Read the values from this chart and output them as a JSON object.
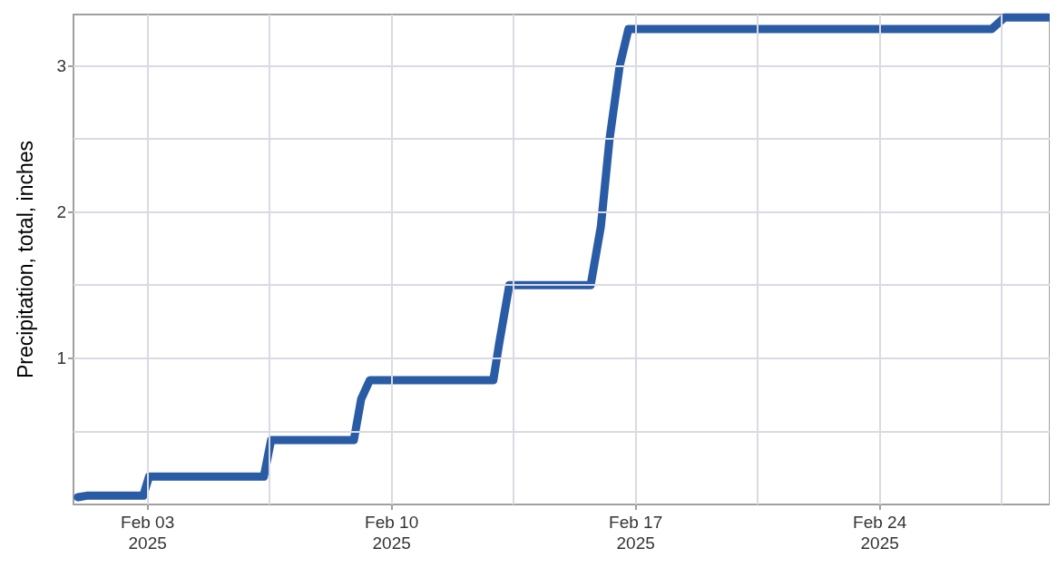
{
  "chart_data": {
    "type": "line",
    "ylabel": "Precipitation, total, inches",
    "x": [
      "2025-02-01T00:00",
      "2025-02-01T06:00",
      "2025-02-02T21:00",
      "2025-02-03T01:00",
      "2025-02-06T08:00",
      "2025-02-06T13:00",
      "2025-02-08T22:00",
      "2025-02-09T03:00",
      "2025-02-09T09:00",
      "2025-02-12T22:00",
      "2025-02-13T02:00",
      "2025-02-13T09:00",
      "2025-02-15T17:00",
      "2025-02-16T00:00",
      "2025-02-16T06:00",
      "2025-02-16T13:00",
      "2025-02-16T19:00",
      "2025-02-27T05:00",
      "2025-02-27T14:00",
      "2025-02-28T20:00"
    ],
    "series": [
      {
        "color": "#2a5ba5",
        "values": [
          0.05,
          0.06,
          0.06,
          0.19,
          0.19,
          0.44,
          0.44,
          0.72,
          0.85,
          0.85,
          1.1,
          1.5,
          1.5,
          1.9,
          2.5,
          3.0,
          3.25,
          3.25,
          3.33,
          3.33
        ]
      }
    ],
    "xlim": [
      "2025-01-31T21:00",
      "2025-02-28T21:00"
    ],
    "xticks": [
      {
        "value": "2025-02-03T00:00",
        "label": "Feb 03\n2025"
      },
      {
        "value": "2025-02-06T12:00",
        "label": null
      },
      {
        "value": "2025-02-10T00:00",
        "label": "Feb 10\n2025"
      },
      {
        "value": "2025-02-13T12:00",
        "label": null
      },
      {
        "value": "2025-02-17T00:00",
        "label": "Feb 17\n2025"
      },
      {
        "value": "2025-02-20T12:00",
        "label": null
      },
      {
        "value": "2025-02-24T00:00",
        "label": "Feb 24\n2025"
      },
      {
        "value": "2025-02-27T12:00",
        "label": null
      }
    ],
    "ylim": [
      0,
      3.35
    ],
    "yticks": [
      {
        "value": 0.5,
        "label": null
      },
      1,
      {
        "value": 1.5,
        "label": null
      },
      2,
      {
        "value": 2.5,
        "label": null
      },
      3
    ],
    "grid": true,
    "line_style": "solid"
  }
}
